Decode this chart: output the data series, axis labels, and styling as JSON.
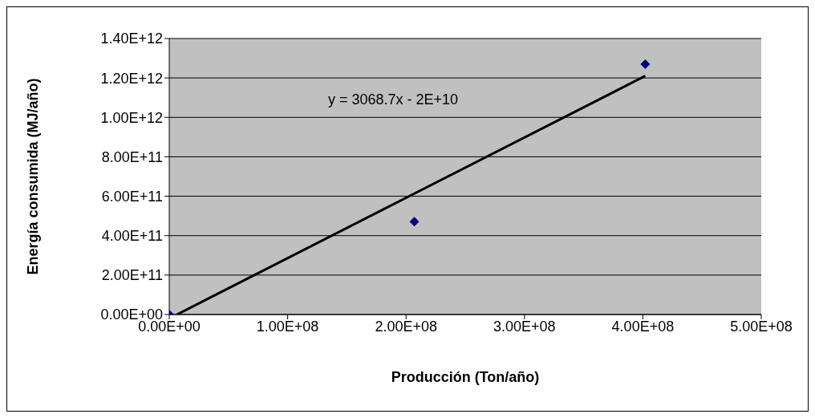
{
  "chart_data": {
    "type": "scatter",
    "xlabel": "Producción (Ton/año)",
    "ylabel": "Energía consumida (MJ/año)",
    "series": [
      {
        "color": "#000080",
        "marker": "diamond",
        "x": [
          0,
          207000000,
          402000000
        ],
        "values": [
          0,
          471000000000,
          1270000000000
        ]
      },
      {
        "type": "line",
        "color": "#000000",
        "marker": "none",
        "x": [
          6500000,
          402000000
        ],
        "values": [
          0,
          1210000000000
        ]
      }
    ],
    "annotations": [
      "y = 3068.7x - 2E+10"
    ],
    "xlim": [
      0,
      500000000
    ],
    "xticks": [
      {
        "value": 0,
        "label": "0.00E+00"
      },
      {
        "value": 100000000,
        "label": "1.00E+08"
      },
      {
        "value": 200000000,
        "label": "2.00E+08"
      },
      {
        "value": 300000000,
        "label": "3.00E+08"
      },
      {
        "value": 400000000,
        "label": "4.00E+08"
      },
      {
        "value": 500000000,
        "label": "5.00E+08"
      }
    ],
    "ylim": [
      0,
      1400000000000
    ],
    "yticks": [
      {
        "value": 0,
        "label": "0.00E+00"
      },
      {
        "value": 200000000000,
        "label": "2.00E+11"
      },
      {
        "value": 400000000000,
        "label": "4.00E+11"
      },
      {
        "value": 600000000000,
        "label": "6.00E+11"
      },
      {
        "value": 800000000000,
        "label": "8.00E+11"
      },
      {
        "value": 1000000000000,
        "label": "1.00E+12"
      },
      {
        "value": 1200000000000,
        "label": "1.20E+12"
      },
      {
        "value": 1400000000000,
        "label": "1.40E+12"
      }
    ],
    "grid": "y",
    "legend": false
  }
}
